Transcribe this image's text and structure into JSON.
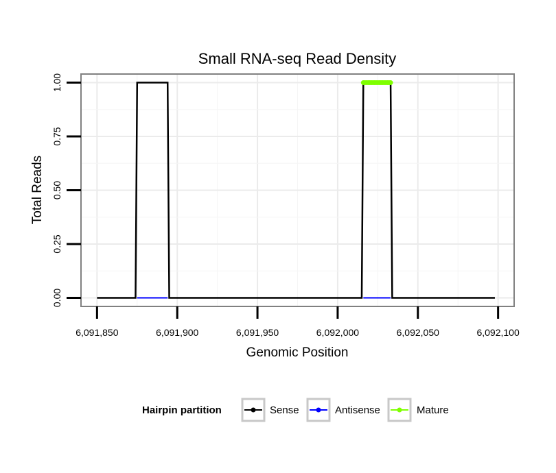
{
  "chart_data": {
    "type": "line",
    "title": "Small RNA-seq Read Density",
    "xlabel": "Genomic Position",
    "ylabel": "Total Reads",
    "xlim": [
      6091840,
      6092110
    ],
    "ylim": [
      -0.04,
      1.04
    ],
    "x_ticks": [
      6091850,
      6091900,
      6091950,
      6092000,
      6092050,
      6092100
    ],
    "x_tick_labels": [
      "6,091,850",
      "6,091,900",
      "6,091,950",
      "6,092,000",
      "6,092,050",
      "6,092,100"
    ],
    "y_ticks": [
      0,
      0.25,
      0.5,
      0.75,
      1.0
    ],
    "y_tick_labels": [
      "0.00",
      "0.25",
      "0.50",
      "0.75",
      "1.00"
    ],
    "grid": true,
    "legend": {
      "title": "Hairpin partition",
      "position": "bottom",
      "entries": [
        "Sense",
        "Antisense",
        "Mature"
      ]
    },
    "series": [
      {
        "name": "Sense",
        "color": "#000000",
        "x": [
          6091850,
          6091874,
          6091875,
          6091894,
          6091895,
          6092015,
          6092016,
          6092033,
          6092034,
          6092098
        ],
        "y": [
          0,
          0,
          1,
          1,
          0,
          0,
          1,
          1,
          0,
          0
        ]
      },
      {
        "name": "Antisense",
        "color": "#0000ff",
        "segments": [
          [
            6091875,
            6091894
          ],
          [
            6092016,
            6092033
          ]
        ],
        "y": 0
      },
      {
        "name": "Mature",
        "color": "#7fff00",
        "segments": [
          [
            6092016,
            6092033
          ]
        ],
        "y": 1
      }
    ]
  }
}
